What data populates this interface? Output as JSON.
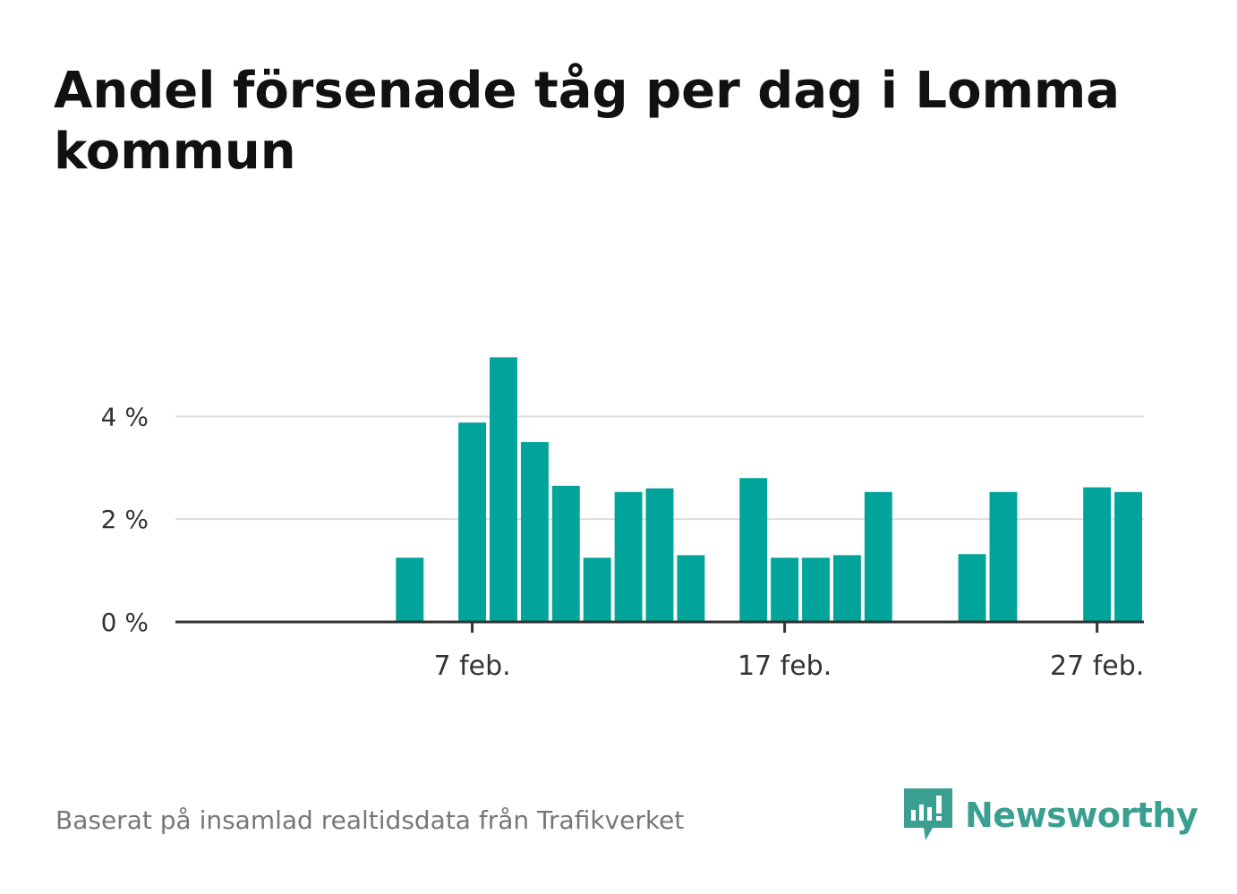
{
  "title": "Andel försenade tåg per dag i Lomma kommun",
  "footer": {
    "source": "Baserat på insamlad realtidsdata från Trafikverket"
  },
  "brand": {
    "name": "Newsworthy",
    "icon": "newsworthy-logo-icon"
  },
  "colors": {
    "bar": "#00a49a",
    "grid": "#dddddd",
    "axis": "#333333",
    "brand": "#3a9e90"
  },
  "chart_data": {
    "type": "bar",
    "title": "Andel försenade tåg per dag i Lomma kommun",
    "xlabel": "",
    "ylabel": "",
    "x_unit": "day of February",
    "x": [
      1,
      2,
      3,
      4,
      5,
      6,
      7,
      8,
      9,
      10,
      11,
      12,
      13,
      14,
      15,
      16,
      17,
      18,
      19,
      20,
      21,
      22,
      23,
      24,
      25,
      26,
      27,
      28
    ],
    "values": [
      0,
      0,
      0,
      0,
      1.25,
      0,
      3.88,
      5.15,
      3.5,
      2.65,
      1.25,
      2.53,
      2.6,
      1.3,
      0,
      2.8,
      1.25,
      1.25,
      1.3,
      2.53,
      0,
      0,
      1.32,
      2.53,
      0,
      0,
      2.62,
      2.53
    ],
    "ylim": [
      0,
      5.8
    ],
    "y_ticks": [
      {
        "value": 0,
        "label": "0 %"
      },
      {
        "value": 2,
        "label": "2 %"
      },
      {
        "value": 4,
        "label": "4 %"
      }
    ],
    "x_ticks": [
      {
        "value": 7,
        "label": "7 feb."
      },
      {
        "value": 17,
        "label": "17 feb."
      },
      {
        "value": 27,
        "label": "27 feb."
      }
    ],
    "grid": true,
    "legend": "none"
  }
}
